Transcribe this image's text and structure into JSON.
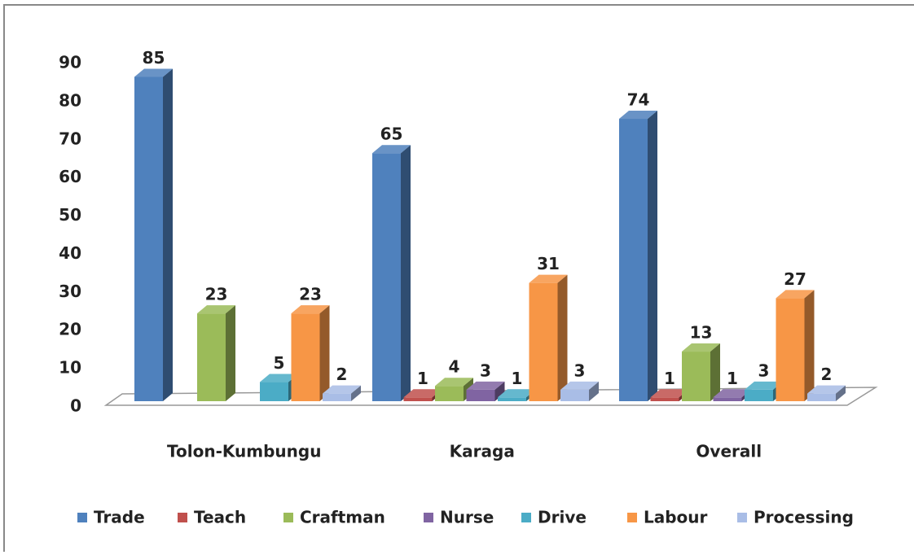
{
  "chart_data": {
    "type": "bar3d",
    "categories": [
      "Tolon-Kumbungu",
      "Karaga",
      "Overall"
    ],
    "series": [
      {
        "name": "Trade",
        "color": "#4f81bd",
        "values": [
          85,
          65,
          74
        ]
      },
      {
        "name": "Teach",
        "color": "#c0504d",
        "values": [
          null,
          1,
          1
        ]
      },
      {
        "name": "Craftman",
        "color": "#9bbb59",
        "values": [
          23,
          4,
          13
        ]
      },
      {
        "name": "Nurse",
        "color": "#8064a2",
        "values": [
          null,
          3,
          1
        ]
      },
      {
        "name": "Drive",
        "color": "#4bacc6",
        "values": [
          5,
          1,
          3
        ]
      },
      {
        "name": "Labour",
        "color": "#f79646",
        "values": [
          23,
          31,
          27
        ]
      },
      {
        "name": "Processing",
        "color": "#a9bde6",
        "values": [
          2,
          3,
          2
        ]
      }
    ],
    "ylim": [
      0,
      90
    ],
    "yticks": [
      0,
      10,
      20,
      30,
      40,
      50,
      60,
      70,
      80,
      90
    ],
    "legend": "bottom"
  }
}
